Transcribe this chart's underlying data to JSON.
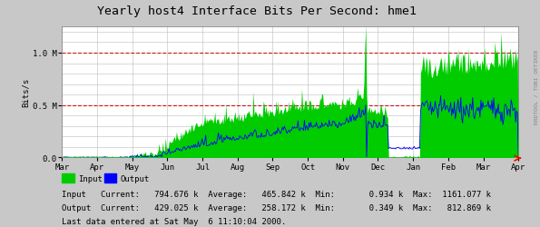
{
  "title": "Yearly host4 Interface Bits Per Second: hme1",
  "ylabel": "Bits/s",
  "x_labels": [
    "Mar",
    "Apr",
    "May",
    "Jun",
    "Jul",
    "Aug",
    "Sep",
    "Oct",
    "Nov",
    "Dec",
    "Jan",
    "Feb",
    "Mar",
    "Apr"
  ],
  "y_tick_labels": [
    "0.0",
    "0.5 M",
    "1.0 M"
  ],
  "ylim": [
    0,
    1.25
  ],
  "bg_color": "#c8c8c8",
  "plot_bg_color": "#ffffff",
  "grid_color_major": "#cc0000",
  "grid_color_minor": "#bbbbbb",
  "input_color": "#00cc00",
  "output_color": "#0000ff",
  "legend_input": "Input",
  "legend_output": "Output",
  "stats_line1": "Input   Current:   794.676 k  Average:   465.842 k  Min:       0.934 k  Max:  1161.077 k",
  "stats_line2": "Output  Current:   429.025 k  Average:   258.172 k  Min:       0.349 k  Max:   812.869 k",
  "last_data": "Last data entered at Sat May  6 11:10:04 2000.",
  "rrdtool_label": "RRDTOOL / TOBI OETIKER",
  "title_fontsize": 9.5,
  "axis_fontsize": 6.5,
  "stats_fontsize": 6.5,
  "n_points": 500,
  "seed": 42
}
